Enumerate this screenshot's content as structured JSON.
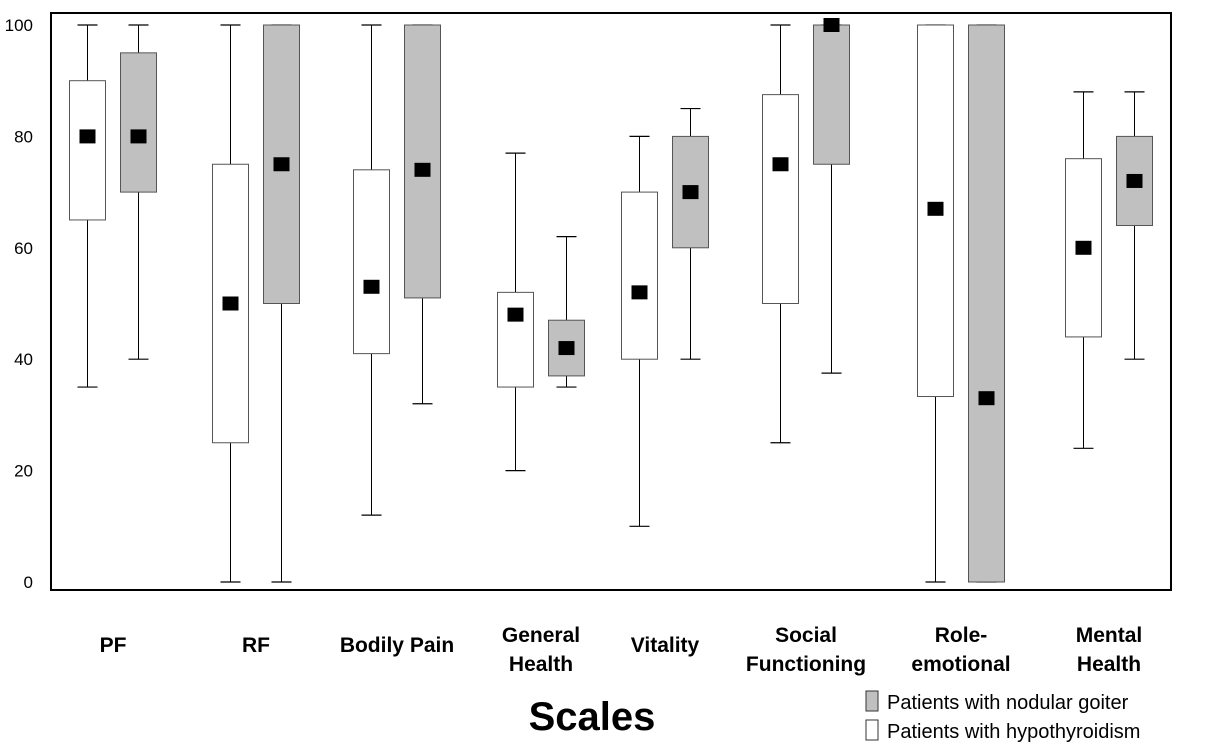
{
  "chart_data": {
    "type": "box",
    "xlabel": "Scales",
    "ylabel": "",
    "ylim": [
      0,
      100
    ],
    "yticks": [
      "0",
      "20",
      "40",
      "60",
      "80",
      "100"
    ],
    "categories": [
      [
        "PF"
      ],
      [
        "RF"
      ],
      [
        "Bodily Pain"
      ],
      [
        "General",
        "Health"
      ],
      [
        "Vitality"
      ],
      [
        "Social",
        "Functioning"
      ],
      [
        "Role-",
        "emotional"
      ],
      [
        "Mental",
        "Health"
      ]
    ],
    "series": [
      {
        "name": "Patients with hypothyroidism",
        "color": "#ffffff",
        "boxes": [
          {
            "min": 35,
            "q1": 65,
            "q3": 90,
            "max": 100,
            "mean": 80
          },
          {
            "min": 0,
            "q1": 25,
            "q3": 75,
            "max": 100,
            "mean": 50
          },
          {
            "min": 12,
            "q1": 41,
            "q3": 74,
            "max": 100,
            "mean": 53
          },
          {
            "min": 20,
            "q1": 35,
            "q3": 52,
            "max": 77,
            "mean": 48
          },
          {
            "min": 10,
            "q1": 40,
            "q3": 70,
            "max": 80,
            "mean": 52
          },
          {
            "min": 25,
            "q1": 50,
            "q3": 87.5,
            "max": 100,
            "mean": 75
          },
          {
            "min": 0,
            "q1": 33.3,
            "q3": 100,
            "max": 100,
            "mean": 67
          },
          {
            "min": 24,
            "q1": 44,
            "q3": 76,
            "max": 88,
            "mean": 60
          }
        ]
      },
      {
        "name": "Patients with nodular goiter",
        "color": "#c0c0c0",
        "boxes": [
          {
            "min": 40,
            "q1": 70,
            "q3": 95,
            "max": 100,
            "mean": 80
          },
          {
            "min": 0,
            "q1": 50,
            "q3": 100,
            "max": 100,
            "mean": 75
          },
          {
            "min": 32,
            "q1": 51,
            "q3": 100,
            "max": 100,
            "mean": 74
          },
          {
            "min": 35,
            "q1": 37,
            "q3": 47,
            "max": 62,
            "mean": 42
          },
          {
            "min": 40,
            "q1": 60,
            "q3": 80,
            "max": 85,
            "mean": 70
          },
          {
            "min": 37.5,
            "q1": 75,
            "q3": 100,
            "max": 100,
            "mean": 100
          },
          {
            "min": 0,
            "q1": 0,
            "q3": 100,
            "max": 100,
            "mean": 33
          },
          {
            "min": 40,
            "q1": 64,
            "q3": 80,
            "max": 88,
            "mean": 72
          }
        ]
      }
    ],
    "legend": {
      "placement": "bottom-right",
      "items": [
        {
          "label": "Patients with nodular goiter",
          "color": "#c0c0c0"
        },
        {
          "label": "Patients with hypothyroidism",
          "color": "#ffffff"
        }
      ]
    },
    "grid": false
  }
}
